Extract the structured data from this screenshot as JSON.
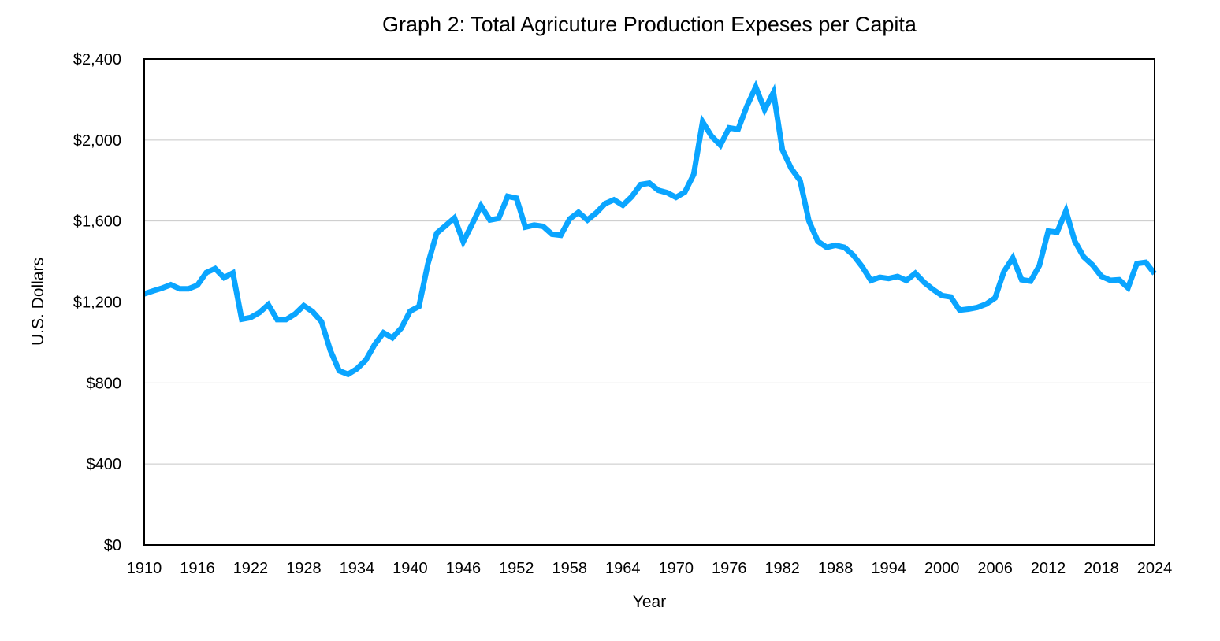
{
  "chart_data": {
    "type": "line",
    "title": "Graph 2: Total Agricuture Production Expeses per Capita",
    "xlabel": "Year",
    "ylabel": "U.S. Dollars",
    "xlim": [
      1910,
      2024
    ],
    "ylim": [
      0,
      2400
    ],
    "grid": true,
    "x_ticks": [
      1910,
      1916,
      1922,
      1928,
      1934,
      1940,
      1946,
      1952,
      1958,
      1964,
      1970,
      1976,
      1982,
      1988,
      1994,
      2000,
      2006,
      2012,
      2018,
      2024
    ],
    "y_ticks": [
      0,
      400,
      800,
      1200,
      1600,
      2000,
      2400
    ],
    "y_tick_labels": [
      "$0",
      "$400",
      "$800",
      "$1,200",
      "$1,600",
      "$2,000",
      "$2,400"
    ],
    "series": [
      {
        "name": "Expenses per capita",
        "color": "#0aa5ff",
        "x": [
          1910,
          1911,
          1912,
          1913,
          1914,
          1915,
          1916,
          1917,
          1918,
          1919,
          1920,
          1921,
          1922,
          1923,
          1924,
          1925,
          1926,
          1927,
          1928,
          1929,
          1930,
          1931,
          1932,
          1933,
          1934,
          1935,
          1936,
          1937,
          1938,
          1939,
          1940,
          1941,
          1942,
          1943,
          1944,
          1945,
          1946,
          1947,
          1948,
          1949,
          1950,
          1951,
          1952,
          1953,
          1954,
          1955,
          1956,
          1957,
          1958,
          1959,
          1960,
          1961,
          1962,
          1963,
          1964,
          1965,
          1966,
          1967,
          1968,
          1969,
          1970,
          1971,
          1972,
          1973,
          1974,
          1975,
          1976,
          1977,
          1978,
          1979,
          1980,
          1981,
          1982,
          1983,
          1984,
          1985,
          1986,
          1987,
          1988,
          1989,
          1990,
          1991,
          1992,
          1993,
          1994,
          1995,
          1996,
          1997,
          1998,
          1999,
          2000,
          2001,
          2002,
          2003,
          2004,
          2005,
          2006,
          2007,
          2008,
          2009,
          2010,
          2011,
          2012,
          2013,
          2014,
          2015,
          2016,
          2017,
          2018,
          2019,
          2020,
          2021,
          2022,
          2023,
          2024
        ],
        "values": [
          1240,
          1255,
          1268,
          1285,
          1265,
          1265,
          1283,
          1345,
          1365,
          1320,
          1343,
          1115,
          1123,
          1148,
          1187,
          1113,
          1113,
          1140,
          1182,
          1152,
          1103,
          960,
          860,
          843,
          870,
          913,
          990,
          1048,
          1023,
          1071,
          1155,
          1178,
          1388,
          1540,
          1577,
          1615,
          1498,
          1585,
          1675,
          1605,
          1613,
          1722,
          1713,
          1570,
          1580,
          1574,
          1535,
          1530,
          1610,
          1643,
          1605,
          1640,
          1686,
          1705,
          1678,
          1720,
          1780,
          1787,
          1752,
          1740,
          1717,
          1743,
          1830,
          2090,
          2020,
          1975,
          2060,
          2053,
          2167,
          2262,
          2150,
          2235,
          1952,
          1860,
          1800,
          1600,
          1500,
          1470,
          1480,
          1470,
          1432,
          1375,
          1306,
          1322,
          1316,
          1326,
          1306,
          1342,
          1297,
          1262,
          1232,
          1225,
          1160,
          1165,
          1173,
          1190,
          1220,
          1350,
          1418,
          1310,
          1303,
          1380,
          1550,
          1545,
          1650,
          1500,
          1423,
          1383,
          1327,
          1307,
          1310,
          1270,
          1390,
          1396,
          1340
        ]
      }
    ]
  }
}
